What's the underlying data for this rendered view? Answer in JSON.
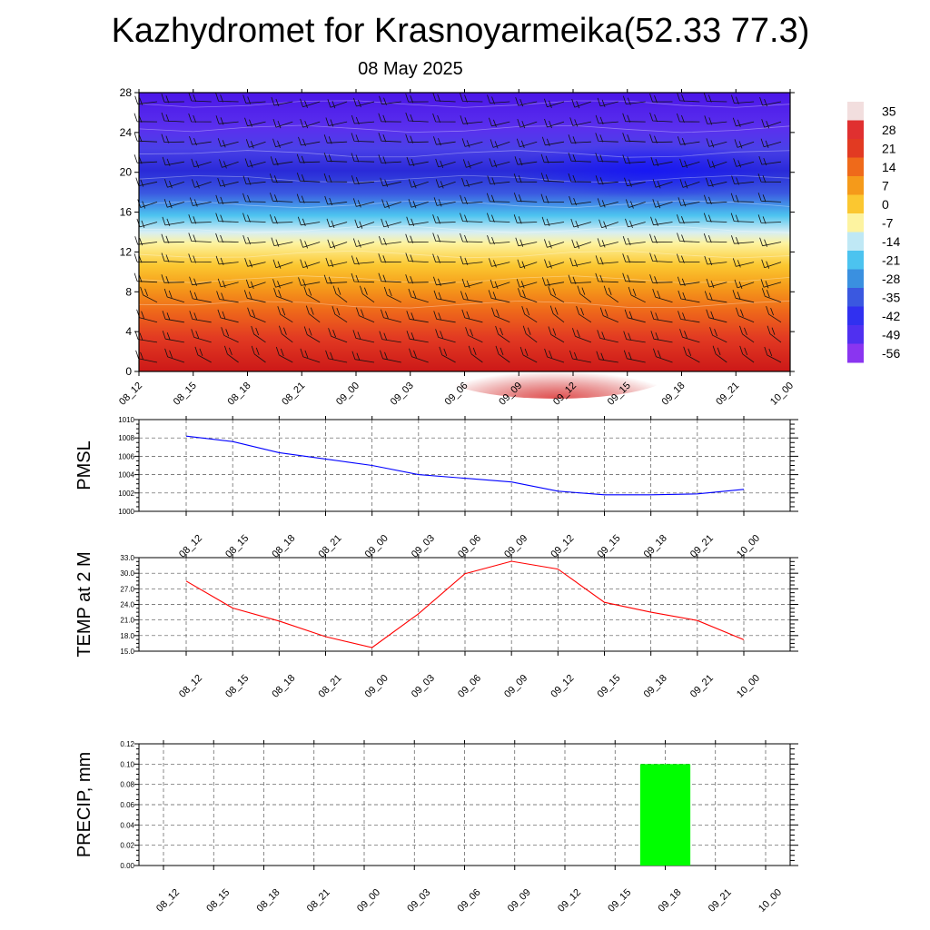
{
  "title": "Kazhydromet for Krasnoyarmeika(52.33 77.3)",
  "subtitle": "08 May 2025",
  "time_labels": [
    "08_12",
    "08_15",
    "08_18",
    "08_21",
    "09_00",
    "09_03",
    "09_06",
    "09_09",
    "09_12",
    "09_15",
    "09_18",
    "09_21",
    "10_00"
  ],
  "colorbar": {
    "labels": [
      "35",
      "28",
      "21",
      "14",
      "7",
      "0",
      "-7",
      "-14",
      "-21",
      "-28",
      "-35",
      "-42",
      "-49",
      "-56"
    ],
    "colors_top_to_bottom": [
      "#f2dede",
      "#e03030",
      "#e23a22",
      "#ef6a1a",
      "#f59a1a",
      "#fbc730",
      "#fdf3a0",
      "#bfe8f5",
      "#4cc3ef",
      "#3a90e0",
      "#3a58e0",
      "#3030f0",
      "#5030f0",
      "#8a35f0"
    ]
  },
  "chart_data": [
    {
      "type": "heatmap",
      "name": "vertical_section",
      "x": [
        "08_12",
        "08_15",
        "08_18",
        "08_21",
        "09_00",
        "09_03",
        "09_06",
        "09_09",
        "09_12",
        "09_15",
        "09_18",
        "09_21",
        "10_00"
      ],
      "ylim": [
        0,
        28
      ],
      "yticks": [
        "0",
        "4",
        "8",
        "12",
        "16",
        "20",
        "24",
        "28"
      ],
      "value_range": [
        -56,
        35
      ]
    },
    {
      "type": "line",
      "name": "pmsl",
      "ylabel": "PMSL",
      "x": [
        "08_12",
        "08_15",
        "08_18",
        "08_21",
        "09_00",
        "09_03",
        "09_06",
        "09_09",
        "09_12",
        "09_15",
        "09_18",
        "09_21",
        "10_00"
      ],
      "values": [
        1008.2,
        1007.6,
        1006.4,
        1005.7,
        1005.0,
        1004.0,
        1003.6,
        1003.2,
        1002.2,
        1001.8,
        1001.8,
        1001.9,
        1002.4
      ],
      "ylim": [
        1000,
        1010
      ],
      "yticks": [
        "1000",
        "1002",
        "1004",
        "1006",
        "1008",
        "1010"
      ],
      "color": "#0000ff"
    },
    {
      "type": "line",
      "name": "temp",
      "ylabel": "TEMP at 2 M",
      "x": [
        "08_12",
        "08_15",
        "08_18",
        "08_21",
        "09_00",
        "09_03",
        "09_06",
        "09_09",
        "09_12",
        "09_15",
        "09_18",
        "09_21",
        "10_00"
      ],
      "values": [
        28.5,
        23.3,
        20.8,
        17.8,
        15.7,
        22.2,
        29.9,
        32.3,
        30.8,
        24.4,
        22.5,
        20.9,
        17.2
      ],
      "ylim": [
        15,
        33
      ],
      "yticks": [
        "15.0",
        "18.0",
        "21.0",
        "24.0",
        "27.0",
        "30.0",
        "33.0"
      ],
      "color": "#ff0000"
    },
    {
      "type": "bar",
      "name": "precip",
      "ylabel": "PRECIP, mm",
      "x": [
        "08_12",
        "08_15",
        "08_18",
        "08_21",
        "09_00",
        "09_03",
        "09_06",
        "09_09",
        "09_12",
        "09_15",
        "09_18",
        "09_21",
        "10_00"
      ],
      "values": [
        0,
        0,
        0,
        0,
        0,
        0,
        0,
        0,
        0,
        0,
        0.1,
        0,
        0
      ],
      "ylim": [
        0,
        0.12
      ],
      "yticks": [
        "0.00",
        "0.02",
        "0.04",
        "0.06",
        "0.08",
        "0.10",
        "0.12"
      ],
      "color": "#00ff00"
    }
  ]
}
